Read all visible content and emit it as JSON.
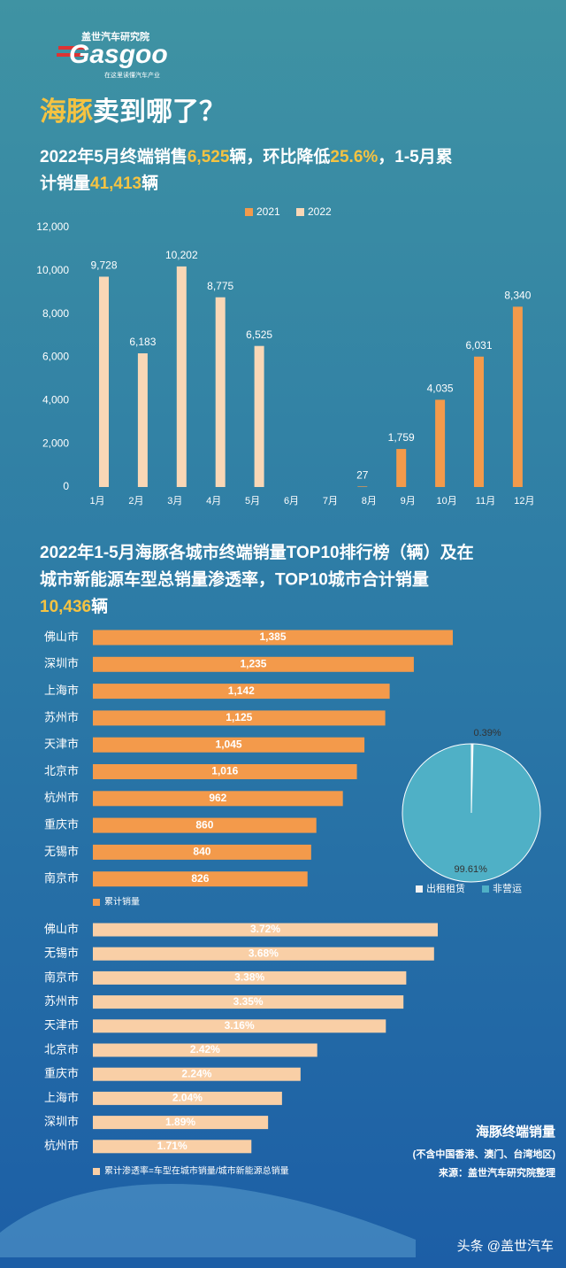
{
  "header": {
    "logo_cn": "盖世汽车研究院",
    "logo_en": "Gasgoo",
    "logo_slogan": "在这里读懂汽车产业",
    "title_lines": [
      [
        {
          "text": "海豚",
          "color": "#f5c342"
        },
        {
          "text": "卖到哪了？"
        }
      ]
    ],
    "subtitle_lines": [
      [
        {
          "text": "2022年5月终端销售"
        },
        {
          "text": "6,525",
          "color": "#f5c342"
        },
        {
          "text": "辆，环比降低"
        },
        {
          "text": "25.6%",
          "color": "#f5c342"
        },
        {
          "text": "，1-5月累"
        }
      ],
      [
        {
          "text": "计销量"
        },
        {
          "text": "41,413",
          "color": "#f5c342"
        },
        {
          "text": "辆"
        }
      ]
    ]
  },
  "chart_data": [
    {
      "type": "bar",
      "categories": [
        "1月",
        "2月",
        "3月",
        "4月",
        "5月",
        "6月",
        "7月",
        "8月",
        "9月",
        "10月",
        "11月",
        "12月"
      ],
      "series": [
        {
          "name": "2021",
          "color": "#f39a4b",
          "values": [
            null,
            null,
            null,
            null,
            null,
            null,
            null,
            27,
            1759,
            4035,
            6031,
            8340
          ],
          "value_labels": [
            null,
            null,
            null,
            null,
            null,
            null,
            null,
            "27",
            "1,759",
            "4,035",
            "6,031",
            "8,340"
          ]
        },
        {
          "name": "2022",
          "color": "#f9d7b6",
          "values": [
            9728,
            6183,
            10202,
            8775,
            6525,
            null,
            null,
            null,
            null,
            null,
            null,
            null
          ],
          "value_labels": [
            "9,728",
            "6,183",
            "10,202",
            "8,775",
            "6,525",
            null,
            null,
            null,
            null,
            null,
            null,
            null
          ]
        }
      ],
      "ylim": [
        0,
        12000
      ],
      "yticks": [
        0,
        {
          "value": 2000,
          "label": "2,000"
        },
        {
          "value": 4000,
          "label": "4,000"
        },
        {
          "value": 6000,
          "label": "6,000"
        },
        {
          "value": 8000,
          "label": "8,000"
        },
        {
          "value": 10000,
          "label": "10,000"
        },
        {
          "value": 12000,
          "label": "12,000"
        }
      ],
      "legend": "top"
    },
    {
      "type": "hbar",
      "title_lines": [
        [
          {
            "text": "2022年1-5月海豚各城市终端销量TOP10排行榜（辆）及在"
          }
        ],
        [
          {
            "text": "城市新能源车型总销量渗透率，TOP10城市合计销量"
          }
        ],
        [
          {
            "text": "10,436",
            "color": "#f5c342"
          },
          {
            "text": "辆"
          }
        ]
      ],
      "categories": [
        "佛山市",
        "深圳市",
        "上海市",
        "苏州市",
        "天津市",
        "北京市",
        "杭州市",
        "重庆市",
        "无锡市",
        "南京市"
      ],
      "series": [
        {
          "name": "累计销量",
          "color": "#f39a4b",
          "values": [
            1385,
            1235,
            1142,
            1125,
            1045,
            1016,
            962,
            860,
            840,
            826
          ],
          "value_labels": [
            "1,385",
            "1,235",
            "1,142",
            "1,125",
            "1,045",
            "1,016",
            "962",
            "860",
            "840",
            "826"
          ]
        }
      ]
    },
    {
      "type": "pie",
      "categories": [
        "出租租赁",
        "非营运"
      ],
      "values": [
        0.39,
        99.61
      ],
      "value_labels": [
        "0.39%",
        "99.61%"
      ],
      "colors": [
        "#f2f2f2",
        "#4fb0c6"
      ]
    },
    {
      "type": "hbar",
      "categories": [
        "佛山市",
        "无锡市",
        "南京市",
        "苏州市",
        "天津市",
        "北京市",
        "重庆市",
        "上海市",
        "深圳市",
        "杭州市"
      ],
      "series": [
        {
          "name": "累计渗透率=车型在城市销量/城市新能源总销量",
          "color": "#f9cfa6",
          "values": [
            3.72,
            3.68,
            3.38,
            3.35,
            3.16,
            2.42,
            2.24,
            2.04,
            1.89,
            1.71
          ],
          "value_labels": [
            "3.72%",
            "3.68%",
            "3.38%",
            "3.35%",
            "3.16%",
            "2.42%",
            "2.24%",
            "2.04%",
            "1.89%",
            "1.71%"
          ]
        }
      ]
    }
  ],
  "footer": {
    "note_title": "海豚终端销量",
    "note_scope": "(不含中国香港、澳门、台湾地区)",
    "source": "来源：盖世汽车研究院整理",
    "watermark": "头条 @盖世汽车"
  }
}
